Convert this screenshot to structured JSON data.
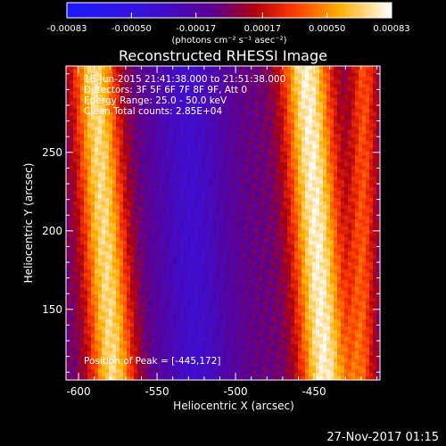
{
  "colorbar": {
    "ticks": [
      "-0.00083",
      "-0.00050",
      "-0.00017",
      "0.00017",
      "0.00050",
      "0.00083"
    ],
    "tick_values": [
      -0.00083,
      -0.0005,
      -0.00017,
      0.00017,
      0.0005,
      0.00083
    ],
    "range": [
      -0.00083,
      0.00083
    ],
    "unit_label": "(photons cm⁻² s⁻¹ asec⁻²)"
  },
  "title": "Reconstructed RHESSI Image",
  "info": {
    "line1": "18-Jun-2015 21:41:38.000 to 21:51:38.000",
    "line2": "Detectors: 3F 5F 6F 7F 8F 9F, Att 0",
    "line3": "Energy Range: 25.0 - 50.0 keV",
    "line4": "Clean     Total counts: 2.85E+04"
  },
  "peak_label": "Position of Peak = [-445,172]",
  "timestamp": "27-Nov-2017 01:15",
  "colors": {
    "background": "#000000",
    "colormap": [
      "#0000ff",
      "#4b00d0",
      "#d40000",
      "#ff6a00",
      "#ffd000",
      "#ffffff"
    ]
  },
  "chart_data": {
    "type": "heatmap",
    "title": "Reconstructed RHESSI Image",
    "xlabel": "Heliocentric X (arcsec)",
    "ylabel": "Heliocentric Y (arcsec)",
    "xlim": [
      -608,
      -408
    ],
    "ylim": [
      105,
      305
    ],
    "x_ticks": [
      -600,
      -550,
      -500,
      -450
    ],
    "y_ticks": [
      150,
      200,
      250
    ],
    "x_tick_labels": [
      "-600",
      "-550",
      "-500",
      "-450"
    ],
    "y_tick_labels": [
      "150",
      "200",
      "250"
    ],
    "peak_position": [
      -445,
      172
    ],
    "bands": [
      {
        "x_top": -590,
        "x_bottom": -578,
        "width": 10,
        "peak": 0.00075,
        "kind": "positive"
      },
      {
        "x_top": -531,
        "x_bottom": -525,
        "width": 16,
        "peak": -0.0003,
        "kind": "negative"
      },
      {
        "x_top": -455,
        "x_bottom": -443,
        "width": 11,
        "peak": 0.00083,
        "kind": "positive"
      },
      {
        "x_top": -418,
        "x_bottom": -420,
        "width": 6,
        "peak": 0.0004,
        "kind": "positive"
      }
    ],
    "background_level": -5e-05
  }
}
